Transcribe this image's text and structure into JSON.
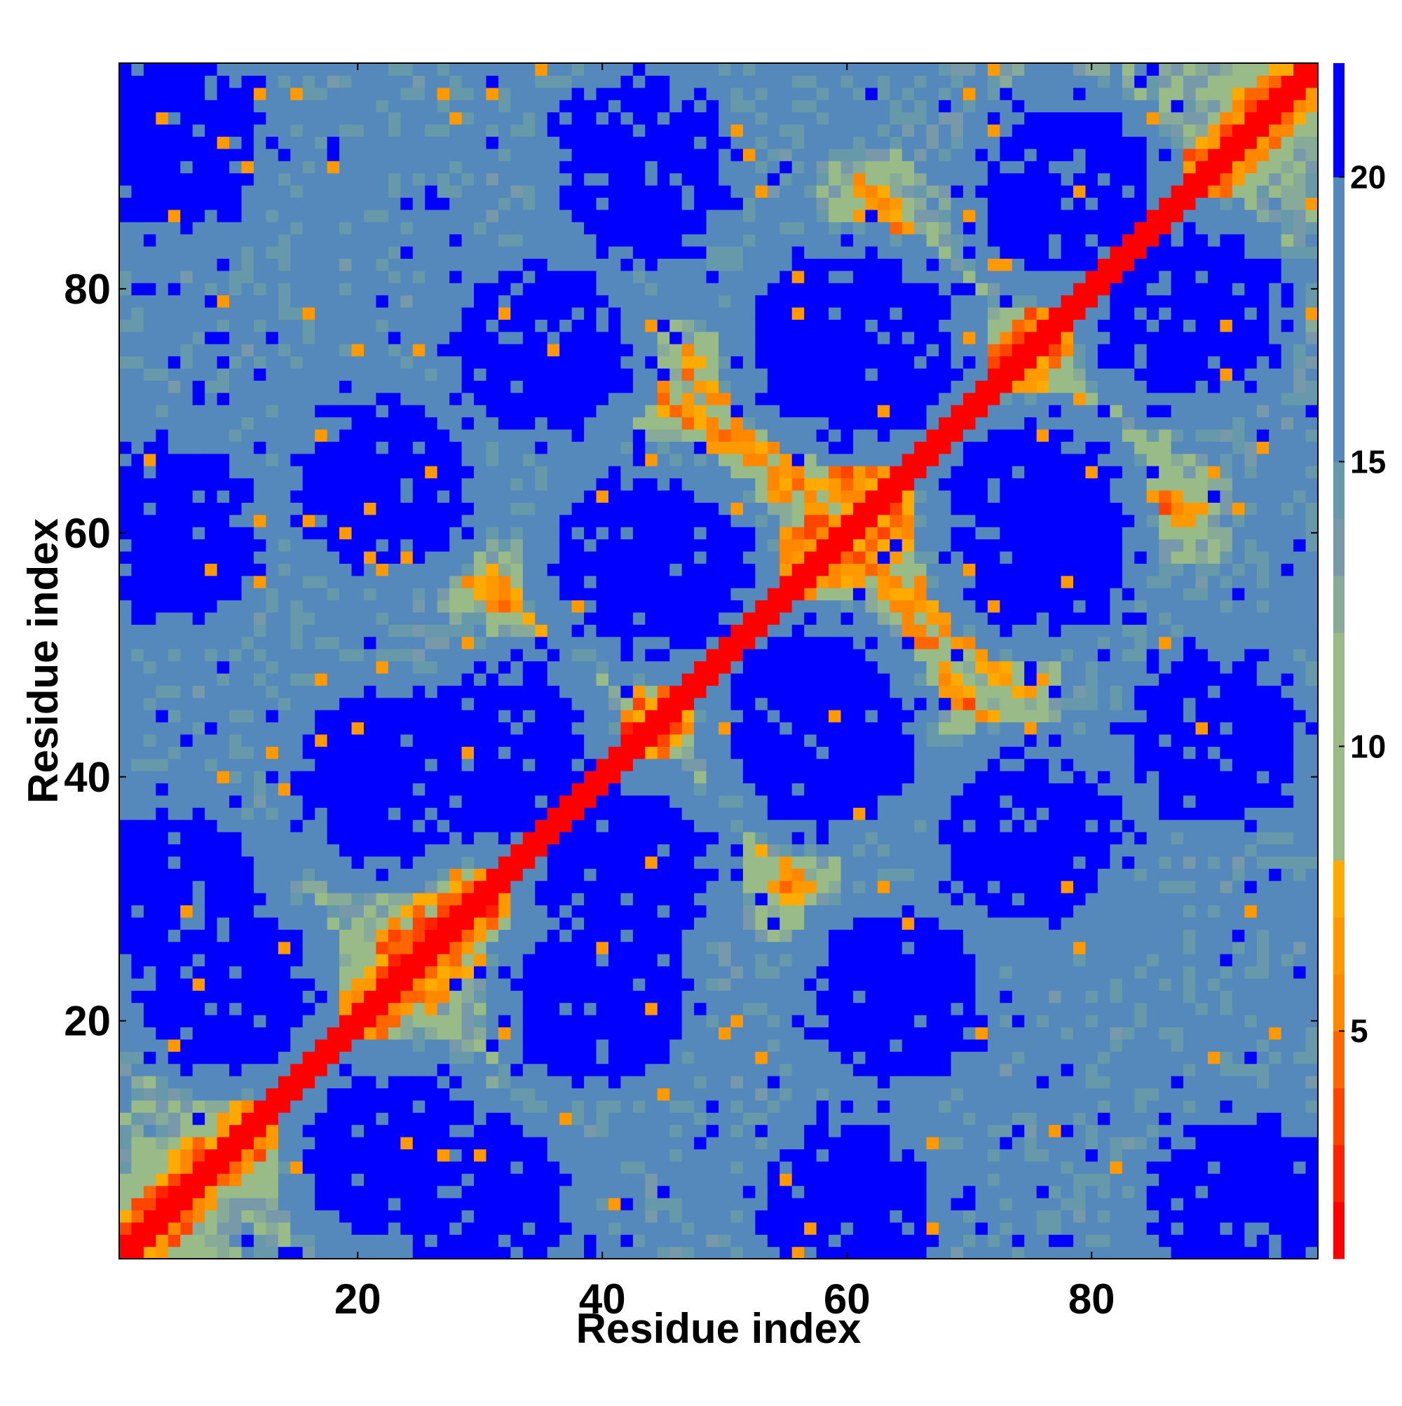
{
  "chart_data": {
    "type": "heatmap",
    "title": "",
    "xlabel": "Residue index",
    "ylabel": "Residue index",
    "n_residues": 98,
    "xlim": [
      1,
      98
    ],
    "ylim": [
      1,
      98
    ],
    "x_ticks": [
      20,
      40,
      60,
      80
    ],
    "y_ticks": [
      20,
      40,
      60,
      80
    ],
    "x_tick_labels": [
      "20",
      "40",
      "60",
      "80"
    ],
    "y_tick_labels": [
      "20",
      "40",
      "60",
      "80"
    ],
    "colorbar": {
      "range": [
        1,
        22
      ],
      "ticks": [
        5,
        10,
        15,
        20
      ],
      "tick_labels": [
        "5",
        "10",
        "15",
        "20"
      ],
      "levels": [
        {
          "max": 2,
          "color": "#ff0000"
        },
        {
          "max": 3,
          "color": "#ff2200"
        },
        {
          "max": 4,
          "color": "#ff4400"
        },
        {
          "max": 5,
          "color": "#ff6600"
        },
        {
          "max": 6,
          "color": "#ff8800"
        },
        {
          "max": 7,
          "color": "#ff9900"
        },
        {
          "max": 8,
          "color": "#ffaa00"
        },
        {
          "max": 9,
          "color": "#99bb88"
        },
        {
          "max": 10,
          "color": "#99bb88"
        },
        {
          "max": 11,
          "color": "#99bb88"
        },
        {
          "max": 12,
          "color": "#99bb88"
        },
        {
          "max": 13,
          "color": "#88aa99"
        },
        {
          "max": 14,
          "color": "#7799aa"
        },
        {
          "max": 15,
          "color": "#6699aa"
        },
        {
          "max": 16,
          "color": "#5588bb"
        },
        {
          "max": 17,
          "color": "#5588bb"
        },
        {
          "max": 18,
          "color": "#5588bb"
        },
        {
          "max": 19,
          "color": "#5588bb"
        },
        {
          "max": 20,
          "color": "#5588bb"
        },
        {
          "max": 22,
          "color": "#0000ff"
        }
      ]
    },
    "description_of_structure": "Symmetric residue-residue distance map with a red main diagonal and orange secondary contact bands",
    "features": {
      "diagonal_value": 1.2,
      "near_diagonal_value": 4.0,
      "far_value": 22,
      "contact_bands": [
        {
          "from": [
            22,
            26
          ],
          "to": [
            46,
            46
          ],
          "value": 6.0
        },
        {
          "from": [
            46,
            46
          ],
          "to": [
            56,
            30
          ],
          "value": 6.0
        },
        {
          "from": [
            46,
            46
          ],
          "to": [
            29,
            57
          ],
          "value": 6.0
        },
        {
          "from": [
            46,
            46
          ],
          "to": [
            68,
            76
          ],
          "value": 6.0
        },
        {
          "from": [
            60,
            60
          ],
          "to": [
            71,
            45
          ],
          "value": 6.0
        },
        {
          "from": [
            60,
            60
          ],
          "to": [
            47,
            74
          ],
          "value": 6.0
        },
        {
          "from": [
            60,
            60
          ],
          "to": [
            62,
            88
          ],
          "value": 6.0
        },
        {
          "from": [
            73,
            73
          ],
          "to": [
            88,
            61
          ],
          "value": 6.0
        },
        {
          "from": [
            73,
            73
          ],
          "to": [
            62,
            88
          ],
          "value": 6.0
        }
      ],
      "domain_centres": [
        [
          35,
          75
        ],
        [
          62,
          75
        ],
        [
          88,
          78
        ],
        [
          45,
          57
        ],
        [
          76,
          59
        ],
        [
          32,
          42
        ],
        [
          58,
          43
        ],
        [
          90,
          43
        ],
        [
          9,
          23
        ],
        [
          40,
          22
        ],
        [
          64,
          22
        ],
        [
          30,
          5
        ],
        [
          60,
          5
        ],
        [
          92,
          5
        ]
      ]
    }
  }
}
